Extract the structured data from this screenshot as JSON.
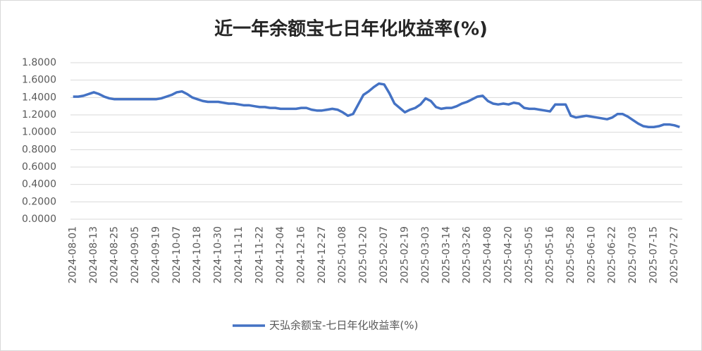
{
  "chart_data": {
    "type": "line",
    "title": "近一年余额宝七日年化收益率(%)",
    "categories": [
      "2024-08-01",
      null,
      null,
      null,
      "2024-08-13",
      null,
      null,
      null,
      "2024-08-25",
      null,
      null,
      null,
      "2024-09-05",
      null,
      null,
      null,
      "2024-09-19",
      null,
      null,
      null,
      "2024-10-07",
      null,
      null,
      null,
      "2024-10-18",
      null,
      null,
      null,
      "2024-10-30",
      null,
      null,
      null,
      "2024-11-11",
      null,
      null,
      null,
      "2024-11-22",
      null,
      null,
      null,
      "2024-12-04",
      null,
      null,
      null,
      "2024-12-16",
      null,
      null,
      null,
      "2024-12-27",
      null,
      null,
      null,
      "2025-01-08",
      null,
      null,
      null,
      "2025-01-20",
      null,
      null,
      null,
      "2025-02-07",
      null,
      null,
      null,
      "2025-02-19",
      null,
      null,
      null,
      "2025-03-03",
      null,
      null,
      null,
      "2025-03-14",
      null,
      null,
      null,
      "2025-03-26",
      null,
      null,
      null,
      "2025-04-08",
      null,
      null,
      null,
      "2025-04-20",
      null,
      null,
      null,
      "2025-05-05",
      null,
      null,
      null,
      "2025-05-16",
      null,
      null,
      null,
      "2025-05-28",
      null,
      null,
      null,
      "2025-06-10",
      null,
      null,
      null,
      "2025-06-22",
      null,
      null,
      null,
      "2025-07-03",
      null,
      null,
      null,
      "2025-07-15",
      null,
      null,
      null,
      "2025-07-27",
      null
    ],
    "series": [
      {
        "name": "天弘余额宝-七日年化收益率(%)",
        "color": "#4472c4",
        "values": [
          1.41,
          1.41,
          1.42,
          1.44,
          1.46,
          1.44,
          1.41,
          1.39,
          1.38,
          1.38,
          1.38,
          1.38,
          1.38,
          1.38,
          1.38,
          1.38,
          1.38,
          1.39,
          1.41,
          1.43,
          1.46,
          1.47,
          1.44,
          1.4,
          1.38,
          1.36,
          1.35,
          1.35,
          1.35,
          1.34,
          1.33,
          1.33,
          1.32,
          1.31,
          1.31,
          1.3,
          1.29,
          1.29,
          1.28,
          1.28,
          1.27,
          1.27,
          1.27,
          1.27,
          1.28,
          1.28,
          1.26,
          1.25,
          1.25,
          1.26,
          1.27,
          1.26,
          1.23,
          1.19,
          1.21,
          1.32,
          1.43,
          1.47,
          1.52,
          1.56,
          1.55,
          1.45,
          1.33,
          1.28,
          1.23,
          1.26,
          1.28,
          1.32,
          1.39,
          1.36,
          1.29,
          1.27,
          1.28,
          1.28,
          1.3,
          1.33,
          1.35,
          1.38,
          1.41,
          1.42,
          1.36,
          1.33,
          1.32,
          1.33,
          1.32,
          1.34,
          1.33,
          1.28,
          1.27,
          1.27,
          1.26,
          1.25,
          1.24,
          1.32,
          1.32,
          1.32,
          1.19,
          1.17,
          1.18,
          1.19,
          1.18,
          1.17,
          1.16,
          1.15,
          1.17,
          1.21,
          1.21,
          1.18,
          1.14,
          1.1,
          1.07,
          1.06,
          1.06,
          1.07,
          1.09,
          1.09,
          1.08,
          1.06
        ]
      }
    ],
    "ylim": [
      0,
      1.8
    ],
    "yticks": [
      {
        "value": 0,
        "label": "0.0000"
      },
      {
        "value": 0.2,
        "label": "0.2000"
      },
      {
        "value": 0.4,
        "label": "0.4000"
      },
      {
        "value": 0.6,
        "label": "0.6000"
      },
      {
        "value": 0.8,
        "label": "0.8000"
      },
      {
        "value": 1,
        "label": "1.0000"
      },
      {
        "value": 1.2,
        "label": "1.2000"
      },
      {
        "value": 1.4,
        "label": "1.4000"
      },
      {
        "value": 1.6,
        "label": "1.6000"
      },
      {
        "value": 1.8,
        "label": "1.8000"
      }
    ],
    "grid": true,
    "legend": "bottom"
  }
}
